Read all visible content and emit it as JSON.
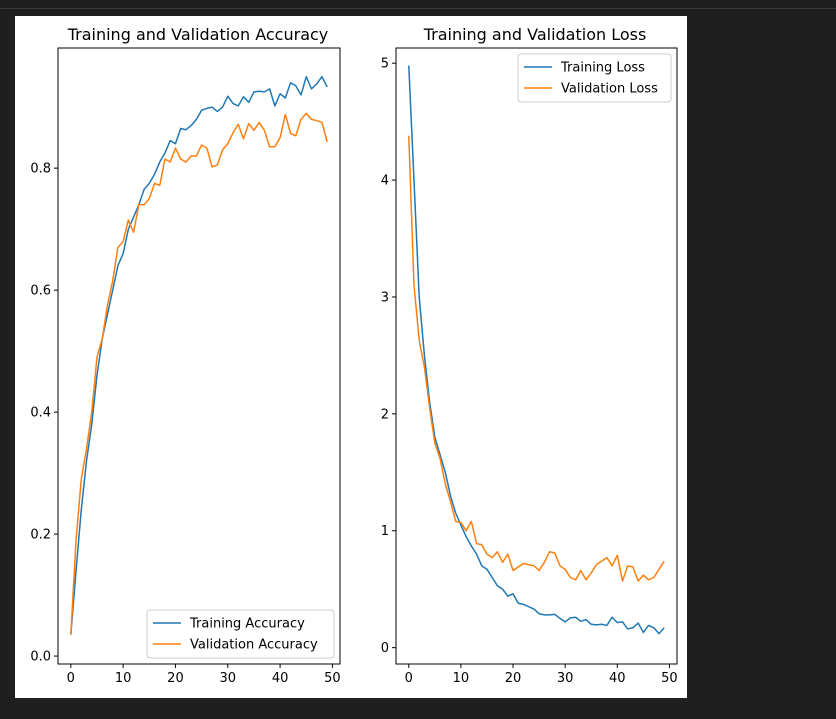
{
  "chart_data": [
    {
      "type": "line",
      "title": "Training and Validation Accuracy",
      "xlabel": "",
      "ylabel": "",
      "xlim": [
        -2.45,
        51.45
      ],
      "ylim": [
        -0.013,
        0.997
      ],
      "xticks": [
        0,
        10,
        20,
        30,
        40,
        50
      ],
      "yticks": [
        0.0,
        0.2,
        0.4,
        0.6,
        0.8
      ],
      "legend": "lower-right",
      "grid": false,
      "series": [
        {
          "name": "Training Accuracy",
          "color": "#1f77b4",
          "values": [
            0.035,
            0.14,
            0.24,
            0.32,
            0.38,
            0.46,
            0.52,
            0.56,
            0.6,
            0.64,
            0.66,
            0.7,
            0.72,
            0.74,
            0.765,
            0.775,
            0.79,
            0.81,
            0.825,
            0.845,
            0.84,
            0.865,
            0.863,
            0.87,
            0.88,
            0.895,
            0.898,
            0.9,
            0.893,
            0.9,
            0.918,
            0.906,
            0.902,
            0.917,
            0.908,
            0.925,
            0.926,
            0.925,
            0.93,
            0.902,
            0.922,
            0.915,
            0.94,
            0.935,
            0.92,
            0.95,
            0.93,
            0.938,
            0.95,
            0.933
          ]
        },
        {
          "name": "Validation Accuracy",
          "color": "#ff7f0e",
          "values": [
            0.035,
            0.19,
            0.29,
            0.34,
            0.4,
            0.49,
            0.52,
            0.575,
            0.615,
            0.67,
            0.68,
            0.715,
            0.695,
            0.74,
            0.74,
            0.75,
            0.775,
            0.772,
            0.815,
            0.81,
            0.833,
            0.815,
            0.81,
            0.82,
            0.82,
            0.838,
            0.833,
            0.802,
            0.805,
            0.83,
            0.84,
            0.858,
            0.872,
            0.848,
            0.873,
            0.862,
            0.875,
            0.862,
            0.835,
            0.835,
            0.85,
            0.888,
            0.857,
            0.853,
            0.88,
            0.89,
            0.88,
            0.878,
            0.875,
            0.843
          ]
        }
      ]
    },
    {
      "type": "line",
      "title": "Training and Validation Loss",
      "xlabel": "",
      "ylabel": "",
      "xlim": [
        -2.45,
        51.45
      ],
      "ylim": [
        -0.14,
        5.13
      ],
      "xticks": [
        0,
        10,
        20,
        30,
        40,
        50
      ],
      "yticks": [
        0,
        1,
        2,
        3,
        4,
        5
      ],
      "legend": "upper-right",
      "grid": false,
      "series": [
        {
          "name": "Training Loss",
          "color": "#1f77b4",
          "values": [
            4.98,
            4.0,
            3.0,
            2.5,
            2.1,
            1.8,
            1.65,
            1.5,
            1.3,
            1.15,
            1.05,
            0.95,
            0.87,
            0.8,
            0.7,
            0.67,
            0.6,
            0.53,
            0.5,
            0.44,
            0.46,
            0.38,
            0.37,
            0.35,
            0.33,
            0.29,
            0.28,
            0.28,
            0.285,
            0.25,
            0.22,
            0.255,
            0.26,
            0.225,
            0.24,
            0.2,
            0.195,
            0.2,
            0.19,
            0.26,
            0.215,
            0.22,
            0.16,
            0.17,
            0.21,
            0.13,
            0.19,
            0.17,
            0.12,
            0.17
          ]
        },
        {
          "name": "Validation Loss",
          "color": "#ff7f0e",
          "values": [
            4.38,
            3.1,
            2.63,
            2.4,
            2.05,
            1.75,
            1.62,
            1.4,
            1.25,
            1.08,
            1.07,
            1.0,
            1.08,
            0.89,
            0.88,
            0.8,
            0.77,
            0.82,
            0.73,
            0.8,
            0.66,
            0.69,
            0.72,
            0.71,
            0.7,
            0.66,
            0.73,
            0.82,
            0.81,
            0.7,
            0.67,
            0.6,
            0.58,
            0.66,
            0.58,
            0.64,
            0.71,
            0.74,
            0.77,
            0.7,
            0.79,
            0.57,
            0.7,
            0.69,
            0.57,
            0.62,
            0.58,
            0.6,
            0.67,
            0.74
          ]
        }
      ]
    }
  ]
}
